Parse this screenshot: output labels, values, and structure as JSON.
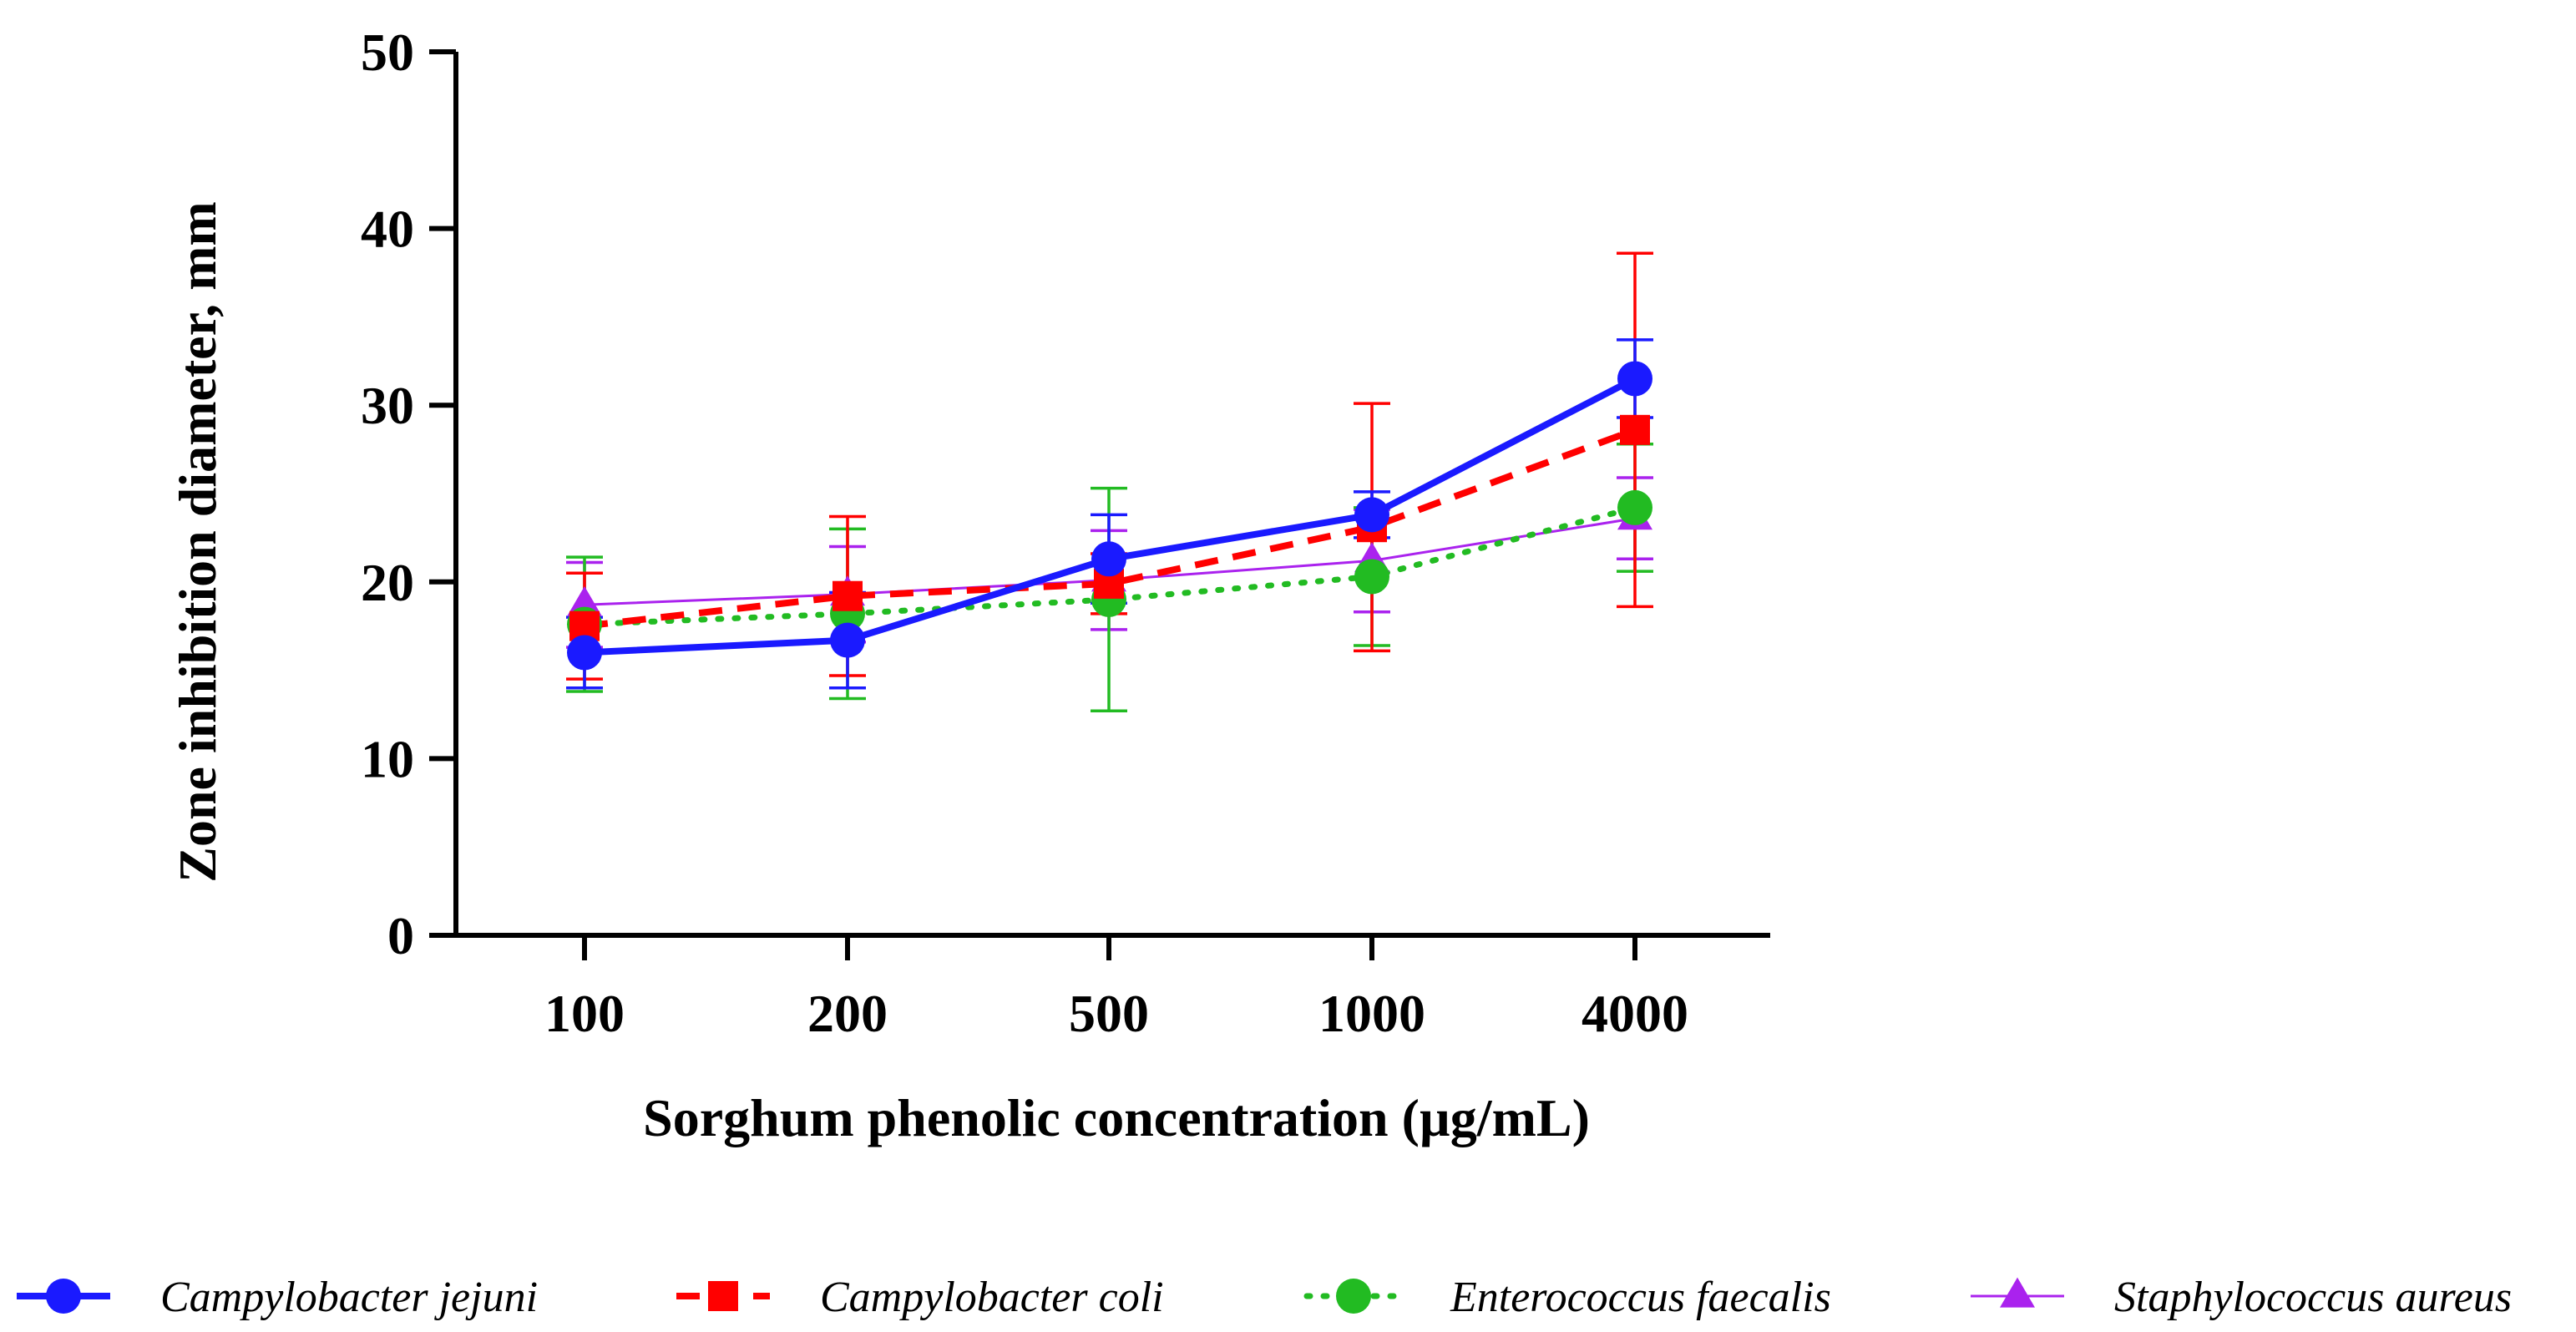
{
  "chart_data": {
    "type": "line",
    "title": "",
    "xlabel": "Sorghum phenolic concentration (µg/mL)",
    "ylabel": "Zone inhibition diameter, mm",
    "categories": [
      "100",
      "200",
      "500",
      "1000",
      "4000"
    ],
    "ylim": [
      0,
      50
    ],
    "yticks": [
      0,
      10,
      20,
      30,
      40,
      50
    ],
    "grid": false,
    "legend_position": "bottom",
    "series": [
      {
        "name": "Campylobacter jejuni",
        "color": "#1a1aff",
        "marker": "circle",
        "line_style": "solid",
        "values": [
          16.0,
          16.7,
          21.3,
          23.8,
          31.5
        ],
        "errors": [
          2.0,
          2.7,
          2.5,
          1.3,
          2.2
        ]
      },
      {
        "name": "Campylobacter coli",
        "color": "#ff0000",
        "marker": "square",
        "line_style": "dashed",
        "values": [
          17.5,
          19.2,
          19.9,
          23.1,
          28.6
        ],
        "errors": [
          3.0,
          4.5,
          1.7,
          7.0,
          10.0
        ]
      },
      {
        "name": "Enterococcus faecalis",
        "color": "#22bb22",
        "marker": "circle",
        "line_style": "dotted",
        "values": [
          17.6,
          18.2,
          19.0,
          20.3,
          24.2
        ],
        "errors": [
          3.8,
          4.8,
          6.3,
          3.9,
          3.6
        ]
      },
      {
        "name": "Staphylococcus aureus",
        "color": "#aa22ee",
        "marker": "triangle",
        "line_style": "solid-thin",
        "values": [
          18.7,
          19.3,
          20.1,
          21.2,
          23.6
        ],
        "errors": [
          2.4,
          2.7,
          2.8,
          2.9,
          2.3
        ]
      }
    ]
  }
}
